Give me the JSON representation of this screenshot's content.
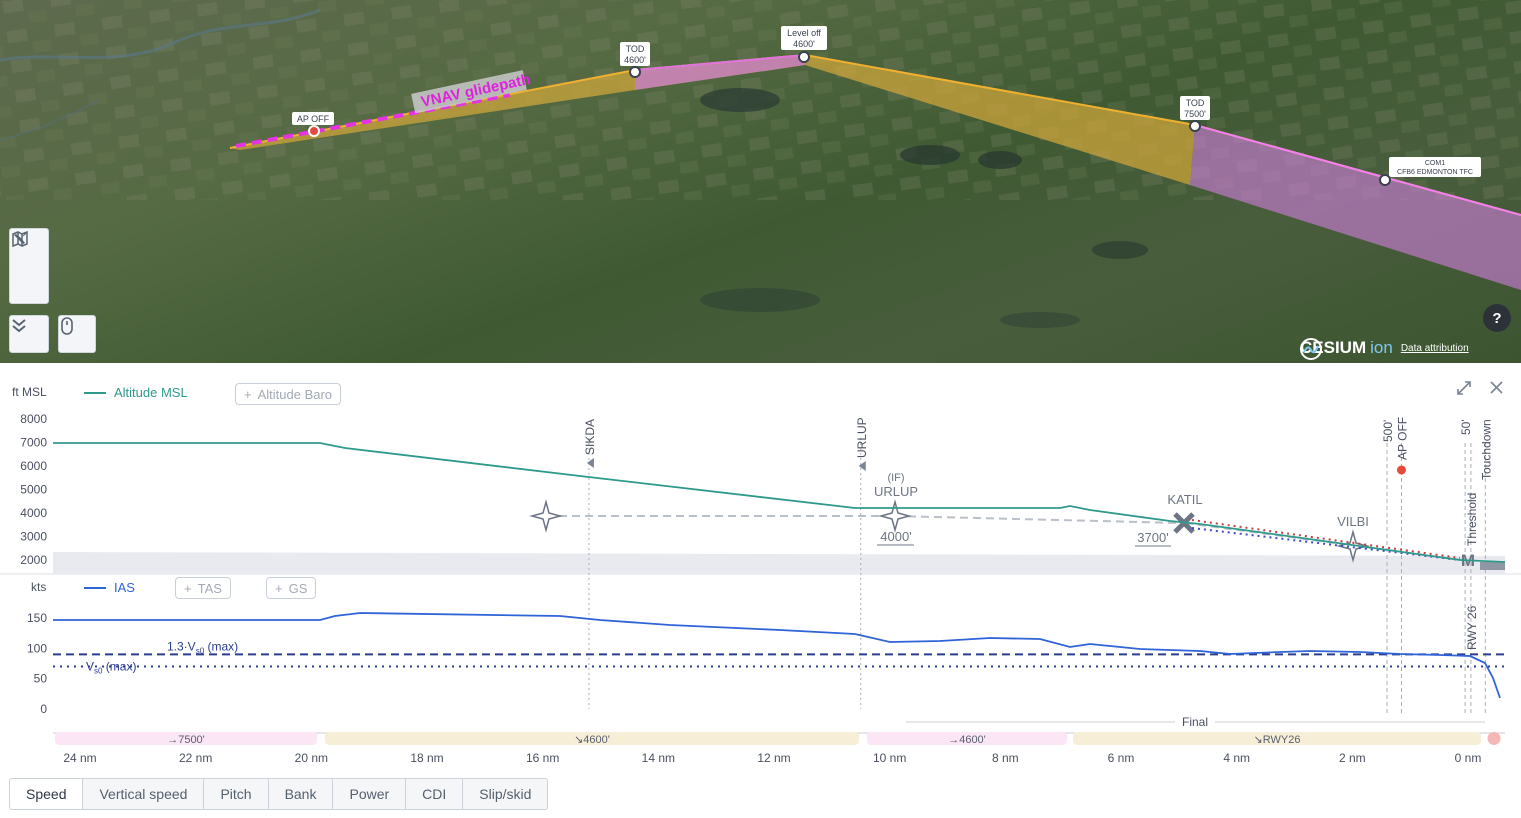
{
  "map": {
    "labels": {
      "glidepath": "VNAV glidepath",
      "ap_off": "AP OFF",
      "tod1_a": "TOD",
      "tod1_b": "4600'",
      "level_a": "Level off",
      "level_b": "4600'",
      "tod2_a": "TOD",
      "tod2_b": "7500'",
      "com_a": "COM1",
      "com_b": "CFB6 EDMONTON TFC"
    },
    "controls": {
      "help": "?"
    },
    "attribution": {
      "brand": "CESIUM",
      "ion": "ion",
      "link": "Data attribution"
    }
  },
  "profile": {
    "alt_unit": "ft MSL",
    "alt_legend": "Altitude MSL",
    "baro_pill": "Altitude Baro",
    "speed_unit": "kts",
    "ias_legend": "IAS",
    "tas_pill": "TAS",
    "gs_pill": "GS",
    "alt_ticks": [
      "8000",
      "7000",
      "6000",
      "5000",
      "4000",
      "3000",
      "2000"
    ],
    "speed_ticks": [
      "150",
      "100",
      "50",
      "0"
    ],
    "distance_ticks": [
      "24 nm",
      "22 nm",
      "20 nm",
      "18 nm",
      "16 nm",
      "14 nm",
      "12 nm",
      "10 nm",
      "8 nm",
      "6 nm",
      "4 nm",
      "2 nm",
      "0 nm"
    ],
    "markers": [
      "SIKDA",
      "URLUP",
      "500'",
      "AP OFF",
      "50'",
      "Threshold",
      "Touchdown",
      "RWY 26"
    ],
    "waypoints": {
      "if_label": "(IF)",
      "urlup": "URLUP",
      "urlup_alt": "4000'",
      "katil": "KATIL",
      "katil_alt": "3700'",
      "vilbi": "VILBI",
      "m": "M"
    },
    "speed_refs": {
      "vs0_13": "1.3·V",
      "vs0_13_sub": "s0",
      "vs0_13_tail": " (max)",
      "vs0": "V",
      "vs0_sub": "s0",
      "vs0_tail": " (max)"
    },
    "final_label": "Final",
    "segments": [
      "→7500'",
      "↘4600'",
      "→4600'",
      "↘RWY26"
    ],
    "colors": {
      "altitude": "#2e9a8c",
      "ias": "#2f63d8",
      "climb": "#fbe6f6",
      "descent": "#f6eed6"
    }
  },
  "tabs": [
    "Speed",
    "Vertical speed",
    "Pitch",
    "Bank",
    "Power",
    "CDI",
    "Slip/skid"
  ],
  "active_tab": "Speed"
}
